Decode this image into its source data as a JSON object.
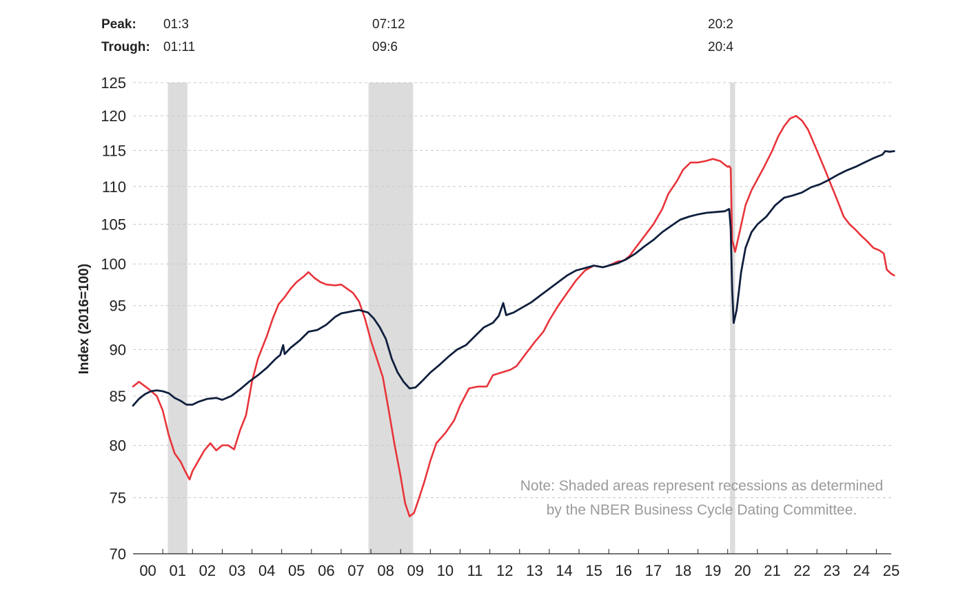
{
  "colors": {
    "red_series": "#e8343a",
    "navy_series": "#0f1f3d",
    "recession": "#dcdcdc",
    "grid": "#c8c8c8"
  },
  "header": {
    "peak_label": "Peak:",
    "trough_label": "Trough:"
  },
  "note": {
    "line1": "Note: Shaded areas represent recessions as determined",
    "line2": "by the NBER Business Cycle Dating Committee."
  },
  "chart_data": {
    "type": "line",
    "title": "",
    "xlabel": "",
    "ylabel": "Index (2016=100)",
    "scale": "log",
    "ylim": [
      70,
      125
    ],
    "yticks": [
      70,
      75,
      80,
      85,
      90,
      95,
      100,
      105,
      110,
      115,
      120,
      125
    ],
    "xlim": [
      2000.0,
      2025.5
    ],
    "xtick_labels": [
      "00",
      "01",
      "02",
      "03",
      "04",
      "05",
      "06",
      "07",
      "08",
      "09",
      "10",
      "11",
      "12",
      "13",
      "14",
      "15",
      "16",
      "17",
      "18",
      "19",
      "20",
      "21",
      "22",
      "23",
      "24",
      "25"
    ],
    "grid": "horizontal dashed",
    "recessions": [
      {
        "peak": "01:3",
        "trough": "01:11",
        "start": 2001.17,
        "end": 2001.83
      },
      {
        "peak": "07:12",
        "trough": "09:6",
        "start": 2007.92,
        "end": 2009.42
      },
      {
        "peak": "20:2",
        "trough": "20:4",
        "start": 2020.08,
        "end": 2020.25
      }
    ],
    "series": [
      {
        "color": "#e8343a",
        "points": [
          [
            2000.0,
            86
          ],
          [
            2000.2,
            86.5
          ],
          [
            2000.5,
            85.8
          ],
          [
            2000.8,
            85.0
          ],
          [
            2001.0,
            83.5
          ],
          [
            2001.2,
            81.0
          ],
          [
            2001.4,
            79.2
          ],
          [
            2001.6,
            78.4
          ],
          [
            2001.75,
            77.5
          ],
          [
            2001.9,
            76.7
          ],
          [
            2002.0,
            77.5
          ],
          [
            2002.2,
            78.5
          ],
          [
            2002.4,
            79.5
          ],
          [
            2002.6,
            80.2
          ],
          [
            2002.8,
            79.5
          ],
          [
            2003.0,
            80.0
          ],
          [
            2003.2,
            80.0
          ],
          [
            2003.4,
            79.6
          ],
          [
            2003.6,
            81.5
          ],
          [
            2003.8,
            83.0
          ],
          [
            2004.0,
            86.5
          ],
          [
            2004.2,
            89.0
          ],
          [
            2004.5,
            91.5
          ],
          [
            2004.7,
            93.5
          ],
          [
            2004.9,
            95.2
          ],
          [
            2005.1,
            96.0
          ],
          [
            2005.3,
            97.0
          ],
          [
            2005.5,
            97.8
          ],
          [
            2005.75,
            98.5
          ],
          [
            2005.9,
            99.0
          ],
          [
            2006.1,
            98.3
          ],
          [
            2006.3,
            97.8
          ],
          [
            2006.5,
            97.5
          ],
          [
            2006.8,
            97.4
          ],
          [
            2007.0,
            97.5
          ],
          [
            2007.2,
            97.0
          ],
          [
            2007.4,
            96.5
          ],
          [
            2007.6,
            95.5
          ],
          [
            2007.8,
            93.5
          ],
          [
            2008.0,
            91.0
          ],
          [
            2008.2,
            89.0
          ],
          [
            2008.4,
            87.0
          ],
          [
            2008.6,
            83.5
          ],
          [
            2008.8,
            80.0
          ],
          [
            2009.0,
            77.0
          ],
          [
            2009.15,
            74.5
          ],
          [
            2009.3,
            73.3
          ],
          [
            2009.45,
            73.6
          ],
          [
            2009.6,
            74.8
          ],
          [
            2009.8,
            76.5
          ],
          [
            2010.0,
            78.5
          ],
          [
            2010.2,
            80.2
          ],
          [
            2010.5,
            81.2
          ],
          [
            2010.8,
            82.5
          ],
          [
            2011.0,
            84.0
          ],
          [
            2011.3,
            85.8
          ],
          [
            2011.6,
            86.0
          ],
          [
            2011.9,
            86.0
          ],
          [
            2012.1,
            87.2
          ],
          [
            2012.4,
            87.5
          ],
          [
            2012.7,
            87.8
          ],
          [
            2012.9,
            88.2
          ],
          [
            2013.2,
            89.5
          ],
          [
            2013.5,
            90.8
          ],
          [
            2013.8,
            92.0
          ],
          [
            2014.0,
            93.3
          ],
          [
            2014.3,
            95.0
          ],
          [
            2014.6,
            96.5
          ],
          [
            2014.9,
            98.0
          ],
          [
            2015.2,
            99.2
          ],
          [
            2015.5,
            99.8
          ],
          [
            2015.8,
            99.6
          ],
          [
            2016.0,
            99.8
          ],
          [
            2016.3,
            100.3
          ],
          [
            2016.5,
            100.4
          ],
          [
            2016.7,
            101.0
          ],
          [
            2016.9,
            102.0
          ],
          [
            2017.2,
            103.5
          ],
          [
            2017.5,
            105.0
          ],
          [
            2017.8,
            107.0
          ],
          [
            2018.0,
            109.0
          ],
          [
            2018.3,
            110.8
          ],
          [
            2018.5,
            112.3
          ],
          [
            2018.75,
            113.3
          ],
          [
            2019.0,
            113.3
          ],
          [
            2019.25,
            113.5
          ],
          [
            2019.5,
            113.8
          ],
          [
            2019.75,
            113.5
          ],
          [
            2019.9,
            113.0
          ],
          [
            2020.0,
            112.7
          ],
          [
            2020.05,
            112.8
          ],
          [
            2020.1,
            112.5
          ],
          [
            2020.15,
            103.0
          ],
          [
            2020.25,
            101.5
          ],
          [
            2020.4,
            104.0
          ],
          [
            2020.6,
            107.5
          ],
          [
            2020.8,
            109.5
          ],
          [
            2021.0,
            111.0
          ],
          [
            2021.2,
            112.5
          ],
          [
            2021.5,
            115.0
          ],
          [
            2021.7,
            117.0
          ],
          [
            2021.9,
            118.5
          ],
          [
            2022.1,
            119.6
          ],
          [
            2022.3,
            120.0
          ],
          [
            2022.5,
            119.3
          ],
          [
            2022.7,
            118.0
          ],
          [
            2022.9,
            116.0
          ],
          [
            2023.1,
            114.0
          ],
          [
            2023.3,
            112.0
          ],
          [
            2023.5,
            110.0
          ],
          [
            2023.7,
            108.0
          ],
          [
            2023.9,
            106.0
          ],
          [
            2024.1,
            105.0
          ],
          [
            2024.3,
            104.3
          ],
          [
            2024.5,
            103.5
          ],
          [
            2024.7,
            102.8
          ],
          [
            2024.9,
            102.0
          ],
          [
            2025.1,
            101.7
          ],
          [
            2025.25,
            101.3
          ],
          [
            2025.35,
            99.3
          ],
          [
            2025.5,
            98.8
          ],
          [
            2025.6,
            98.6
          ]
        ]
      },
      {
        "color": "#0f1f3d",
        "points": [
          [
            2000.0,
            84.0
          ],
          [
            2000.2,
            84.7
          ],
          [
            2000.4,
            85.2
          ],
          [
            2000.6,
            85.5
          ],
          [
            2000.8,
            85.6
          ],
          [
            2001.0,
            85.5
          ],
          [
            2001.2,
            85.3
          ],
          [
            2001.4,
            84.8
          ],
          [
            2001.6,
            84.5
          ],
          [
            2001.8,
            84.1
          ],
          [
            2002.0,
            84.1
          ],
          [
            2002.2,
            84.4
          ],
          [
            2002.5,
            84.7
          ],
          [
            2002.8,
            84.8
          ],
          [
            2003.0,
            84.6
          ],
          [
            2003.3,
            85.0
          ],
          [
            2003.6,
            85.7
          ],
          [
            2003.9,
            86.5
          ],
          [
            2004.2,
            87.2
          ],
          [
            2004.5,
            88.0
          ],
          [
            2004.8,
            89.0
          ],
          [
            2004.95,
            89.4
          ],
          [
            2005.05,
            90.5
          ],
          [
            2005.1,
            89.5
          ],
          [
            2005.3,
            90.2
          ],
          [
            2005.6,
            91.0
          ],
          [
            2005.9,
            92.0
          ],
          [
            2006.2,
            92.2
          ],
          [
            2006.5,
            92.8
          ],
          [
            2006.8,
            93.7
          ],
          [
            2007.0,
            94.1
          ],
          [
            2007.3,
            94.3
          ],
          [
            2007.6,
            94.5
          ],
          [
            2007.9,
            94.2
          ],
          [
            2008.1,
            93.5
          ],
          [
            2008.3,
            92.5
          ],
          [
            2008.5,
            91.2
          ],
          [
            2008.7,
            89.0
          ],
          [
            2008.9,
            87.5
          ],
          [
            2009.1,
            86.5
          ],
          [
            2009.3,
            85.8
          ],
          [
            2009.5,
            85.9
          ],
          [
            2009.7,
            86.5
          ],
          [
            2010.0,
            87.5
          ],
          [
            2010.3,
            88.3
          ],
          [
            2010.6,
            89.2
          ],
          [
            2010.9,
            90.0
          ],
          [
            2011.2,
            90.5
          ],
          [
            2011.5,
            91.5
          ],
          [
            2011.8,
            92.5
          ],
          [
            2012.1,
            93.0
          ],
          [
            2012.3,
            93.8
          ],
          [
            2012.45,
            95.3
          ],
          [
            2012.55,
            93.9
          ],
          [
            2012.8,
            94.2
          ],
          [
            2013.1,
            94.8
          ],
          [
            2013.4,
            95.4
          ],
          [
            2013.7,
            96.2
          ],
          [
            2014.0,
            97.0
          ],
          [
            2014.3,
            97.8
          ],
          [
            2014.6,
            98.6
          ],
          [
            2014.9,
            99.2
          ],
          [
            2015.2,
            99.5
          ],
          [
            2015.5,
            99.8
          ],
          [
            2015.8,
            99.6
          ],
          [
            2016.0,
            99.8
          ],
          [
            2016.3,
            100.1
          ],
          [
            2016.6,
            100.6
          ],
          [
            2016.9,
            101.3
          ],
          [
            2017.2,
            102.2
          ],
          [
            2017.5,
            103.0
          ],
          [
            2017.8,
            104.0
          ],
          [
            2018.1,
            104.8
          ],
          [
            2018.4,
            105.6
          ],
          [
            2018.7,
            106.0
          ],
          [
            2019.0,
            106.3
          ],
          [
            2019.3,
            106.5
          ],
          [
            2019.6,
            106.6
          ],
          [
            2019.9,
            106.7
          ],
          [
            2020.05,
            107.0
          ],
          [
            2020.1,
            104.5
          ],
          [
            2020.15,
            97.0
          ],
          [
            2020.2,
            93.0
          ],
          [
            2020.3,
            94.5
          ],
          [
            2020.45,
            99.0
          ],
          [
            2020.6,
            102.0
          ],
          [
            2020.8,
            104.0
          ],
          [
            2021.0,
            105.0
          ],
          [
            2021.3,
            106.0
          ],
          [
            2021.6,
            107.5
          ],
          [
            2021.9,
            108.5
          ],
          [
            2022.2,
            108.8
          ],
          [
            2022.5,
            109.2
          ],
          [
            2022.8,
            109.9
          ],
          [
            2023.1,
            110.3
          ],
          [
            2023.4,
            110.9
          ],
          [
            2023.7,
            111.6
          ],
          [
            2024.0,
            112.2
          ],
          [
            2024.3,
            112.7
          ],
          [
            2024.6,
            113.3
          ],
          [
            2024.9,
            113.9
          ],
          [
            2025.2,
            114.4
          ],
          [
            2025.3,
            114.9
          ],
          [
            2025.45,
            114.8
          ],
          [
            2025.6,
            114.9
          ]
        ]
      }
    ]
  }
}
